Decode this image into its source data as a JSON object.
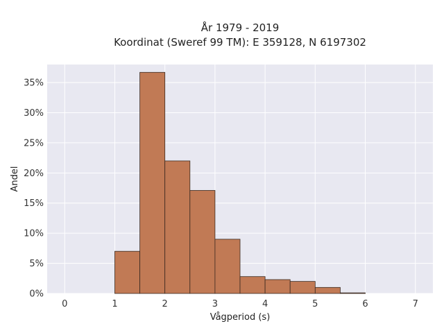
{
  "chart_data": {
    "type": "bar",
    "title_line1": "År 1979 - 2019",
    "title_line2": "Koordinat (Sweref 99 TM): E 359128, N 6197302",
    "xlabel": "Vågperiod (s)",
    "ylabel": "Andel",
    "x_ticks": [
      0,
      1,
      2,
      3,
      4,
      5,
      6,
      7
    ],
    "x_tick_labels": [
      "0",
      "1",
      "2",
      "3",
      "4",
      "5",
      "6",
      "7"
    ],
    "y_ticks": [
      0,
      5,
      10,
      15,
      20,
      25,
      30,
      35
    ],
    "y_tick_labels": [
      "0%",
      "5%",
      "10%",
      "15%",
      "20%",
      "25%",
      "30%",
      "35%"
    ],
    "xlim": [
      -0.35,
      7.35
    ],
    "ylim": [
      0,
      38
    ],
    "bin_edges": [
      1,
      1.5,
      2,
      2.5,
      3,
      3.5,
      4,
      4.5,
      5,
      5.5,
      6
    ],
    "values": [
      7.0,
      36.7,
      22.0,
      17.1,
      9.0,
      2.8,
      2.3,
      2.0,
      1.0,
      0.1
    ],
    "grid": true,
    "colors": {
      "bar_fill": "#c17a55",
      "bar_edge": "#3a2a20",
      "plot_background": "#e8e8f1",
      "grid": "#ffffff"
    }
  }
}
